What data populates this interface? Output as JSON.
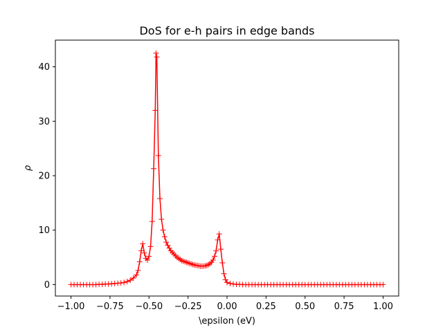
{
  "chart_data": {
    "type": "line",
    "title": "DoS for e-h pairs in edge bands",
    "xlabel": "\\epsilon (eV)",
    "ylabel": "ρ",
    "xlim": [
      -1.1,
      1.1
    ],
    "ylim": [
      -2.1,
      44.9
    ],
    "xticks": [
      -1.0,
      -0.75,
      -0.5,
      -0.25,
      0.0,
      0.25,
      0.5,
      0.75,
      1.0
    ],
    "xtick_labels": [
      "−1.00",
      "−0.75",
      "−0.50",
      "−0.25",
      "0.00",
      "0.25",
      "0.50",
      "0.75",
      "1.00"
    ],
    "yticks": [
      0,
      10,
      20,
      30,
      40
    ],
    "ytick_labels": [
      "0",
      "10",
      "20",
      "30",
      "40"
    ],
    "grid": false,
    "series": [
      {
        "color": "#ff0000",
        "marker": "+",
        "x": [
          -1.0,
          -0.98,
          -0.96,
          -0.94,
          -0.92,
          -0.9,
          -0.88,
          -0.86,
          -0.84,
          -0.82,
          -0.8,
          -0.78,
          -0.76,
          -0.74,
          -0.72,
          -0.7,
          -0.68,
          -0.66,
          -0.64,
          -0.62,
          -0.6,
          -0.58,
          -0.57,
          -0.56,
          -0.55,
          -0.54,
          -0.53,
          -0.52,
          -0.51,
          -0.5,
          -0.49,
          -0.48,
          -0.47,
          -0.46,
          -0.455,
          -0.45,
          -0.44,
          -0.43,
          -0.42,
          -0.41,
          -0.4,
          -0.39,
          -0.38,
          -0.37,
          -0.36,
          -0.35,
          -0.34,
          -0.33,
          -0.32,
          -0.31,
          -0.3,
          -0.29,
          -0.28,
          -0.27,
          -0.26,
          -0.25,
          -0.24,
          -0.23,
          -0.22,
          -0.21,
          -0.2,
          -0.19,
          -0.18,
          -0.17,
          -0.16,
          -0.15,
          -0.14,
          -0.13,
          -0.12,
          -0.11,
          -0.1,
          -0.09,
          -0.08,
          -0.07,
          -0.06,
          -0.05,
          -0.04,
          -0.03,
          -0.02,
          -0.01,
          0.0,
          0.02,
          0.04,
          0.06,
          0.08,
          0.1,
          0.12,
          0.14,
          0.16,
          0.18,
          0.2,
          0.22,
          0.24,
          0.26,
          0.28,
          0.3,
          0.32,
          0.34,
          0.36,
          0.38,
          0.4,
          0.42,
          0.44,
          0.46,
          0.48,
          0.5,
          0.52,
          0.54,
          0.56,
          0.58,
          0.6,
          0.62,
          0.64,
          0.66,
          0.68,
          0.7,
          0.72,
          0.74,
          0.76,
          0.78,
          0.8,
          0.82,
          0.84,
          0.86,
          0.88,
          0.9,
          0.92,
          0.94,
          0.96,
          0.98,
          1.0
        ],
        "y": [
          0.0,
          0.0,
          0.0,
          0.0,
          0.0,
          0.0,
          0.0,
          0.0,
          0.0,
          0.05,
          0.05,
          0.1,
          0.1,
          0.15,
          0.2,
          0.25,
          0.3,
          0.4,
          0.55,
          0.8,
          1.2,
          1.8,
          2.6,
          4.2,
          6.2,
          7.5,
          5.8,
          4.8,
          4.5,
          5.2,
          7.0,
          11.6,
          21.3,
          32.0,
          42.5,
          41.8,
          23.7,
          15.8,
          12.0,
          10.0,
          8.8,
          7.8,
          7.2,
          6.7,
          6.2,
          5.9,
          5.6,
          5.3,
          5.0,
          4.8,
          4.6,
          4.4,
          4.3,
          4.2,
          4.1,
          4.0,
          3.9,
          3.8,
          3.7,
          3.6,
          3.55,
          3.5,
          3.45,
          3.4,
          3.4,
          3.4,
          3.45,
          3.5,
          3.65,
          3.85,
          4.1,
          4.5,
          5.2,
          6.2,
          8.2,
          9.3,
          6.5,
          4.0,
          2.0,
          0.9,
          0.4,
          0.2,
          0.1,
          0.05,
          0.05,
          0.0,
          0.0,
          0.0,
          0.0,
          0.0,
          0.0,
          0.0,
          0.0,
          0.0,
          0.0,
          0.0,
          0.0,
          0.0,
          0.0,
          0.0,
          0.0,
          0.0,
          0.0,
          0.0,
          0.0,
          0.0,
          0.0,
          0.0,
          0.0,
          0.0,
          0.0,
          0.0,
          0.0,
          0.0,
          0.0,
          0.0,
          0.0,
          0.0,
          0.0,
          0.0,
          0.0,
          0.0,
          0.0,
          0.0,
          0.0,
          0.0,
          0.0,
          0.0,
          0.0,
          0.0,
          0.0
        ]
      }
    ]
  }
}
